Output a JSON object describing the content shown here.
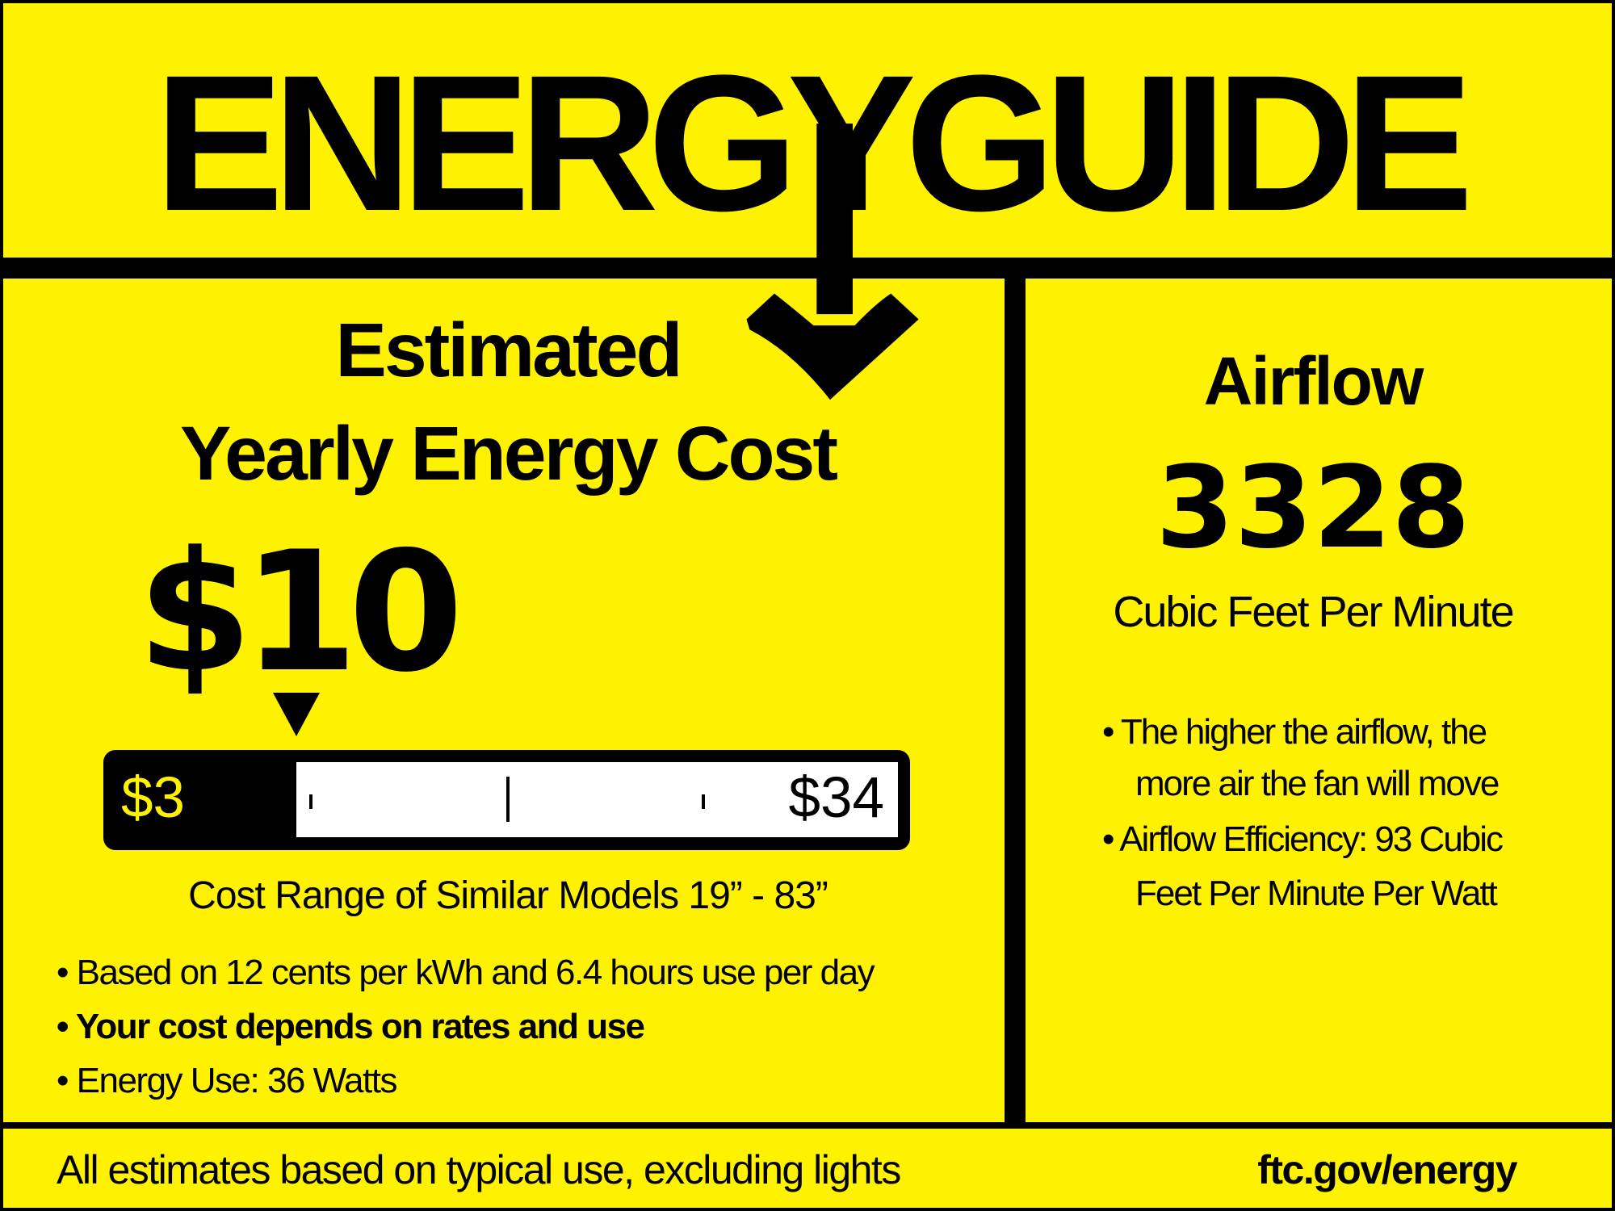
{
  "header": {
    "title": "ENERGYGUIDE"
  },
  "cost_panel": {
    "heading_line1": "Estimated",
    "heading_line2": "Yearly Energy Cost",
    "estimated_cost": "$10",
    "estimated_cost_value": 10,
    "range_low_label": "$3",
    "range_high_label": "$34",
    "range_low_value": 3,
    "range_high_value": 34,
    "range_caption": "Cost Range of Similar Models 19” - 83”",
    "bullets": [
      "• Based on 12 cents per kWh and 6.4 hours use per day",
      "• Your cost depends on rates and use",
      "• Energy Use: 36 Watts"
    ]
  },
  "airflow_panel": {
    "heading": "Airflow",
    "value": "3328",
    "unit": "Cubic Feet Per Minute",
    "bullets": [
      "• The higher the airflow, the",
      "more air the fan will move",
      "• Airflow Efficiency: 93 Cubic",
      "Feet Per Minute Per Watt"
    ]
  },
  "footer": {
    "note": "All estimates based on typical use, excluding lights",
    "link": "ftc.gov/energy"
  },
  "colors": {
    "background": "#FFF200",
    "ink": "#000000"
  }
}
